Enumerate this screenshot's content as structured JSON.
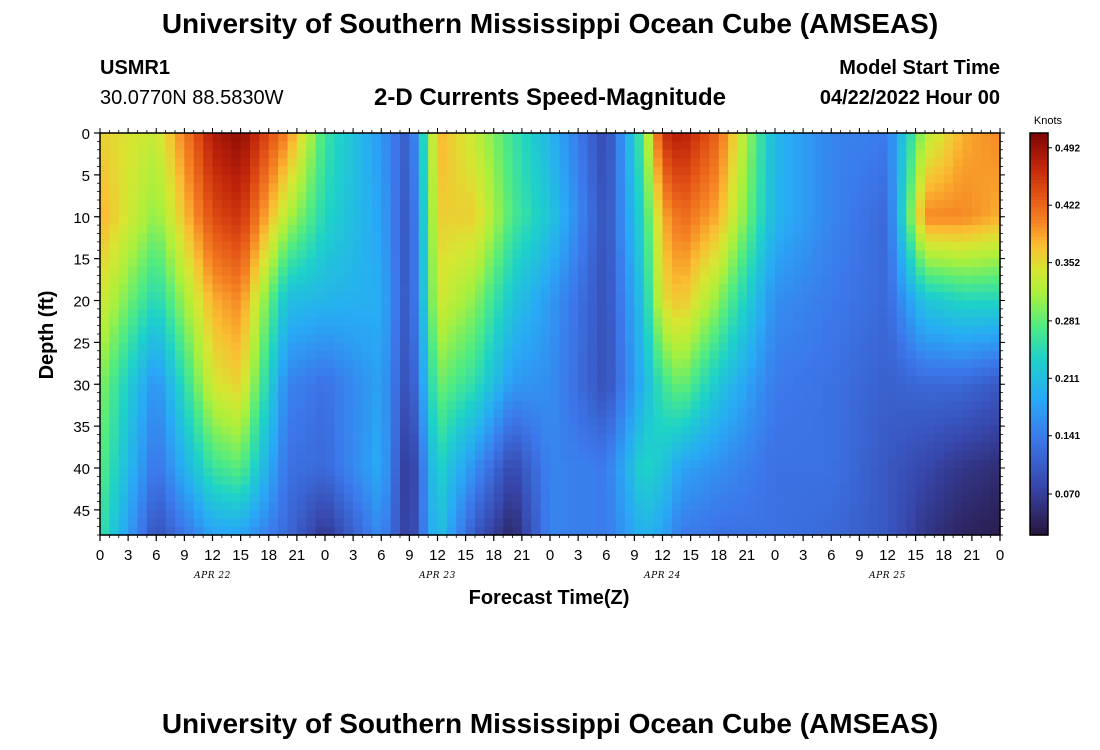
{
  "page": {
    "title": "University of Southern Mississippi Ocean Cube (AMSEAS)",
    "footer_title": "University of Southern Mississippi Ocean Cube (AMSEAS)",
    "station_id": "USMR1",
    "location": "30.0770N  88.5830W",
    "plot_title": "2-D Currents Speed-Magnitude",
    "model_start_label": "Model Start Time",
    "model_start_value": "04/22/2022 Hour 00"
  },
  "chart_data": {
    "type": "heatmap",
    "title": "2-D Currents Speed-Magnitude",
    "xlabel": "Forecast Time(Z)",
    "ylabel": "Depth (ft)",
    "x_range_hours": [
      0,
      96
    ],
    "y_range_ft": [
      0,
      48
    ],
    "y_ticks": [
      0,
      5,
      10,
      15,
      20,
      25,
      30,
      35,
      40,
      45
    ],
    "x_tick_labels": [
      "0",
      "3",
      "6",
      "9",
      "12",
      "15",
      "18",
      "21",
      "0",
      "3",
      "6",
      "9",
      "12",
      "15",
      "18",
      "21",
      "0",
      "3",
      "6",
      "9",
      "12",
      "15",
      "18",
      "21",
      "0",
      "3",
      "6",
      "9",
      "12",
      "15",
      "18",
      "21",
      "0"
    ],
    "date_labels": [
      {
        "text": "APR 22",
        "hour": 12
      },
      {
        "text": "APR 23",
        "hour": 36
      },
      {
        "text": "APR 24",
        "hour": 60
      },
      {
        "text": "APR 25",
        "hour": 84
      }
    ],
    "colorbar": {
      "units": "Knots",
      "ticks": [
        "0.492",
        "0.422",
        "0.352",
        "0.281",
        "0.211",
        "0.141",
        "0.070"
      ],
      "tick_values": [
        0.492,
        0.422,
        0.352,
        0.281,
        0.211,
        0.141,
        0.07
      ],
      "min": 0.02,
      "max": 0.51
    },
    "speed_field_knots": {
      "description": "Approximate current speed sampled by depth (rows) and forecast hour (cols)",
      "hours": [
        0,
        6,
        12,
        15,
        20,
        24,
        30,
        33,
        36,
        40,
        44,
        48,
        54,
        58,
        60,
        62,
        66,
        72,
        78,
        84,
        88,
        92,
        96
      ],
      "depths_ft": [
        0,
        10,
        20,
        30,
        40,
        48
      ],
      "values": [
        [
          0.36,
          0.33,
          0.48,
          0.5,
          0.4,
          0.26,
          0.17,
          0.1,
          0.38,
          0.33,
          0.26,
          0.2,
          0.08,
          0.28,
          0.46,
          0.48,
          0.42,
          0.2,
          0.15,
          0.14,
          0.32,
          0.38,
          0.4
        ],
        [
          0.38,
          0.3,
          0.44,
          0.46,
          0.32,
          0.24,
          0.18,
          0.09,
          0.36,
          0.36,
          0.27,
          0.22,
          0.09,
          0.25,
          0.38,
          0.42,
          0.38,
          0.2,
          0.15,
          0.12,
          0.4,
          0.4,
          0.38
        ],
        [
          0.34,
          0.24,
          0.38,
          0.4,
          0.21,
          0.2,
          0.19,
          0.09,
          0.34,
          0.3,
          0.22,
          0.17,
          0.09,
          0.22,
          0.35,
          0.37,
          0.3,
          0.16,
          0.14,
          0.12,
          0.22,
          0.24,
          0.24
        ],
        [
          0.3,
          0.16,
          0.34,
          0.36,
          0.15,
          0.13,
          0.18,
          0.08,
          0.29,
          0.25,
          0.17,
          0.16,
          0.09,
          0.2,
          0.26,
          0.29,
          0.22,
          0.14,
          0.13,
          0.11,
          0.12,
          0.12,
          0.1
        ],
        [
          0.28,
          0.13,
          0.26,
          0.28,
          0.13,
          0.12,
          0.19,
          0.05,
          0.24,
          0.16,
          0.08,
          0.15,
          0.14,
          0.24,
          0.22,
          0.18,
          0.16,
          0.13,
          0.13,
          0.1,
          0.08,
          0.06,
          0.05
        ],
        [
          0.26,
          0.09,
          0.18,
          0.18,
          0.12,
          0.06,
          0.16,
          0.06,
          0.22,
          0.1,
          0.04,
          0.15,
          0.14,
          0.2,
          0.18,
          0.14,
          0.13,
          0.13,
          0.12,
          0.1,
          0.06,
          0.04,
          0.03
        ]
      ]
    }
  }
}
